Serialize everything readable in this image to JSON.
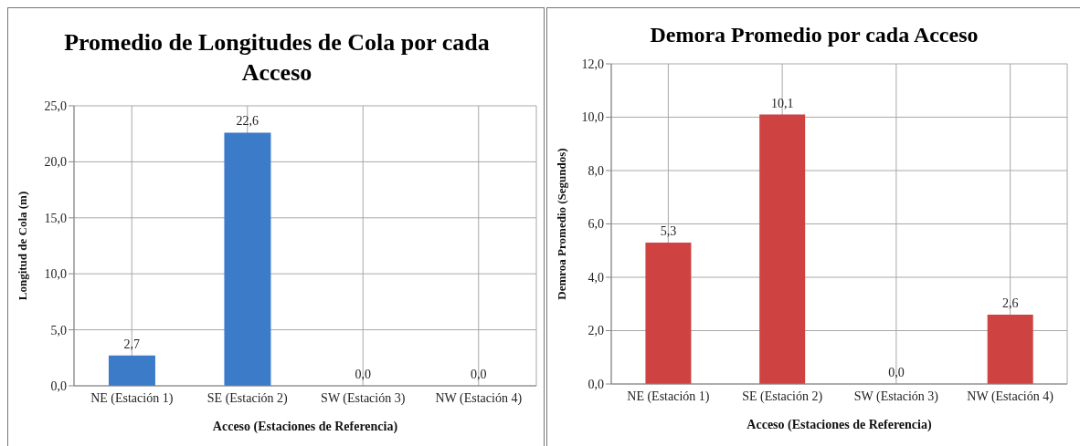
{
  "chart_data": [
    {
      "type": "bar",
      "title": "Promedio de Longitudes de Cola por cada Acceso",
      "xlabel": "Acceso (Estaciones de Referencia)",
      "ylabel": "Longitud de Cola (m)",
      "categories": [
        "NE (Estación 1)",
        "SE (Estación 2)",
        "SW (Estación 3)",
        "NW (Estación 4)"
      ],
      "values": [
        2.7,
        22.6,
        0,
        0
      ],
      "value_labels": [
        "2,7",
        "22,6",
        "0,0",
        "0,0"
      ],
      "color": "#3b7bc8",
      "ylim": [
        0,
        25
      ],
      "yticks": [
        {
          "value": 0,
          "label": "0,0"
        },
        {
          "value": 5,
          "label": "5,0"
        },
        {
          "value": 10,
          "label": "10,0"
        },
        {
          "value": 15,
          "label": "15,0"
        },
        {
          "value": 20,
          "label": "20,0"
        },
        {
          "value": 25,
          "label": "25,0"
        }
      ],
      "grid": true
    },
    {
      "type": "bar",
      "title": "Demora Promedio por cada Acceso",
      "xlabel": "Acceso (Estaciones de Referencia)",
      "ylabel": "Demroa Promedio (Segundos)",
      "categories": [
        "NE (Estación 1)",
        "SE (Estación 2)",
        "SW (Estación 3)",
        "NW (Estación 4)"
      ],
      "values": [
        5.3,
        10.1,
        0,
        2.6
      ],
      "value_labels": [
        "5,3",
        "10,1",
        "0,0",
        "2,6"
      ],
      "color": "#cf4242",
      "ylim": [
        0,
        12
      ],
      "yticks": [
        {
          "value": 0,
          "label": "0,0"
        },
        {
          "value": 2,
          "label": "2,0"
        },
        {
          "value": 4,
          "label": "4,0"
        },
        {
          "value": 6,
          "label": "6,0"
        },
        {
          "value": 8,
          "label": "8,0"
        },
        {
          "value": 10,
          "label": "10,0"
        },
        {
          "value": 12,
          "label": "12,0"
        }
      ],
      "grid": true
    }
  ]
}
